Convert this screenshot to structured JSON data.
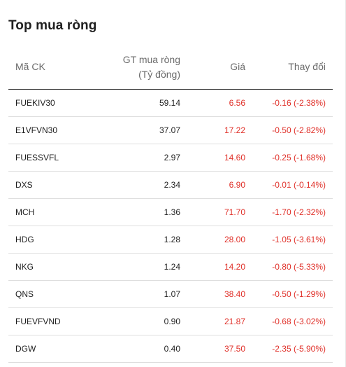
{
  "title": "Top mua ròng",
  "columns": {
    "code": "Mã CK",
    "value_line1": "GT mua ròng",
    "value_line2": "(Tỷ đồng)",
    "price": "Giá",
    "change": "Thay đổi"
  },
  "colors": {
    "negative": "#e0312a",
    "text": "#1f1f1f",
    "header_text": "#6b6b6b"
  },
  "rows": [
    {
      "code": "FUEKIV30",
      "value": "59.14",
      "price": "6.56",
      "change": "-0.16 (-2.38%)"
    },
    {
      "code": "E1VFVN30",
      "value": "37.07",
      "price": "17.22",
      "change": "-0.50 (-2.82%)"
    },
    {
      "code": "FUESSVFL",
      "value": "2.97",
      "price": "14.60",
      "change": "-0.25 (-1.68%)"
    },
    {
      "code": "DXS",
      "value": "2.34",
      "price": "6.90",
      "change": "-0.01 (-0.14%)"
    },
    {
      "code": "MCH",
      "value": "1.36",
      "price": "71.70",
      "change": "-1.70 (-2.32%)"
    },
    {
      "code": "HDG",
      "value": "1.28",
      "price": "28.00",
      "change": "-1.05 (-3.61%)"
    },
    {
      "code": "NKG",
      "value": "1.24",
      "price": "14.20",
      "change": "-0.80 (-5.33%)"
    },
    {
      "code": "QNS",
      "value": "1.07",
      "price": "38.40",
      "change": "-0.50 (-1.29%)"
    },
    {
      "code": "FUEVFVND",
      "value": "0.90",
      "price": "21.87",
      "change": "-0.68 (-3.02%)"
    },
    {
      "code": "DGW",
      "value": "0.40",
      "price": "37.50",
      "change": "-2.35 (-5.90%)"
    }
  ]
}
